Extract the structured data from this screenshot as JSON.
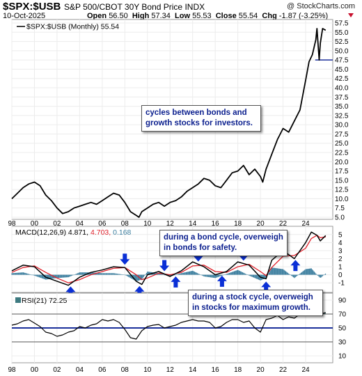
{
  "header": {
    "symbol": "$SPX:$USB",
    "description": "S&P 500/CBOT 30Y Bond Price INDX",
    "copyright": "@ StockCharts.com",
    "date": "10-Oct-2025",
    "open_label": "Open",
    "open": "56.50",
    "high_label": "High",
    "high": "57.34",
    "low_label": "Low",
    "low": "55.53",
    "close_label": "Close",
    "close": "55.54",
    "chg_label": "Chg",
    "chg": "-1.87 (-3.25%)"
  },
  "colors": {
    "price": "#000000",
    "macd": "#000000",
    "signal": "#e0202a",
    "histogram": "#3d7f9f",
    "rsi": "#000000",
    "rsi_fill": "#3d7a80",
    "arrow": "#0a2fd6",
    "annotation_text": "#0b1f8e",
    "rsi_50_line": "#1a2f9a",
    "hline_price": "#1a2f9a"
  },
  "annotations": {
    "cycles": "cycles between bonds and growth stocks for investors.",
    "bond_cycle": "during a bond cycle, overweigh in bonds for safety.",
    "stock_cycle": "during a stock cycle, overweigh in stocks for maximum growth."
  },
  "chart_data": [
    {
      "type": "line",
      "panel": "price",
      "legend": "$SPX:$USB (Monthly) 55.54",
      "x": [
        1998,
        1998.5,
        1999,
        1999.5,
        2000,
        2000.5,
        2001,
        2001.5,
        2002,
        2002.5,
        2003,
        2003.5,
        2004,
        2004.5,
        2005,
        2005.5,
        2006,
        2006.5,
        2007,
        2007.5,
        2008,
        2008.5,
        2009,
        2009.25,
        2009.5,
        2010,
        2010.5,
        2011,
        2011.5,
        2012,
        2012.5,
        2013,
        2013.5,
        2014,
        2014.5,
        2015,
        2015.5,
        2016,
        2016.5,
        2017,
        2017.5,
        2018,
        2018.5,
        2019,
        2019.5,
        2020,
        2020.2,
        2020.5,
        2021,
        2021.5,
        2022,
        2022.5,
        2023,
        2023.5,
        2024,
        2024.3,
        2024.6,
        2024.9,
        2025,
        2025.2,
        2025.3,
        2025.5,
        2025.77
      ],
      "y": [
        10.0,
        11.5,
        13.0,
        14.0,
        14.5,
        13.5,
        11.0,
        9.5,
        7.5,
        6.0,
        6.5,
        7.5,
        8.0,
        8.5,
        9.0,
        8.5,
        9.5,
        10.5,
        11.5,
        11.0,
        9.0,
        6.5,
        5.5,
        5.0,
        6.5,
        7.5,
        8.5,
        9.0,
        8.0,
        9.0,
        9.5,
        10.5,
        12.0,
        13.0,
        14.0,
        15.5,
        15.0,
        13.5,
        13.0,
        15.0,
        17.0,
        17.5,
        19.0,
        16.5,
        18.0,
        16.0,
        14.5,
        18.0,
        22.0,
        26.0,
        29.0,
        28.0,
        31.0,
        34.0,
        42.0,
        47.0,
        49.0,
        53.0,
        56.0,
        47.5,
        52.0,
        56.0,
        55.54
      ],
      "xlabel": "",
      "ylabel": "",
      "ylim": [
        5.0,
        57.5
      ],
      "yticks": [
        5.0,
        7.5,
        10.0,
        12.5,
        15.0,
        17.5,
        20.0,
        22.5,
        25.0,
        27.5,
        30.0,
        32.5,
        35.0,
        37.5,
        40.0,
        42.5,
        45.0,
        47.5,
        50.0,
        52.5,
        55.0,
        57.5
      ],
      "ytick_labels": [
        "5.0",
        "7.5",
        "10.0",
        "12.5",
        "15.0",
        "17.5",
        "20.0",
        "22.5",
        "25.0",
        "27.5",
        "30.0",
        "32.5",
        "35.0",
        "37.5",
        "40.0",
        "42.5",
        "45.0",
        "47.5",
        "50.0",
        "52.5",
        "55.0",
        "57.5"
      ],
      "hline": 47.5,
      "xlim": [
        1998,
        2026.4
      ],
      "xticks": [
        1998,
        2000,
        2002,
        2004,
        2006,
        2008,
        2010,
        2012,
        2014,
        2016,
        2018,
        2020,
        2022,
        2024
      ],
      "xtick_labels": [
        "98",
        "00",
        "02",
        "04",
        "06",
        "08",
        "10",
        "12",
        "14",
        "16",
        "18",
        "20",
        "22",
        "24"
      ]
    },
    {
      "type": "line",
      "panel": "macd",
      "legend_name": "MACD(12,26,9)",
      "legend_values": [
        "4.871",
        "4.703",
        "0.168"
      ],
      "x": [
        1998,
        1999,
        2000,
        2001,
        2002,
        2003,
        2004,
        2005,
        2006,
        2007,
        2008,
        2009,
        2009.5,
        2010,
        2011,
        2012,
        2013,
        2014,
        2015,
        2016,
        2017,
        2018,
        2019,
        2020,
        2020.5,
        2021,
        2022,
        2023,
        2024,
        2024.5,
        2025,
        2025.3,
        2025.77
      ],
      "series": [
        {
          "name": "MACD",
          "values": [
            0.5,
            1.2,
            1.0,
            -0.3,
            -0.8,
            -1.3,
            -0.3,
            0.3,
            0.6,
            1.0,
            0.9,
            -0.8,
            -1.2,
            0.0,
            0.4,
            -0.2,
            0.5,
            1.6,
            1.0,
            0.0,
            0.4,
            1.6,
            1.2,
            -0.3,
            -0.5,
            1.8,
            3.0,
            2.0,
            4.0,
            5.3,
            4.9,
            4.2,
            4.871
          ]
        },
        {
          "name": "Signal",
          "values": [
            0.3,
            0.9,
            1.1,
            0.3,
            -0.4,
            -1.0,
            -0.6,
            0.0,
            0.4,
            0.8,
            0.9,
            0.0,
            -0.6,
            -0.4,
            0.2,
            0.0,
            0.3,
            1.1,
            1.2,
            0.4,
            0.3,
            1.0,
            1.3,
            0.4,
            -0.1,
            0.9,
            2.3,
            2.4,
            3.3,
            4.5,
            4.9,
            4.6,
            4.703
          ]
        }
      ],
      "ylim": [
        -1.5,
        5.5
      ],
      "yticks": [
        -1,
        0,
        1,
        2,
        3,
        4,
        5
      ],
      "ytick_labels": [
        "-1",
        "0",
        "1",
        "2",
        "3",
        "4",
        "5"
      ],
      "arrows_up": [
        2003.2,
        2009.3,
        2012.5,
        2016.6,
        2020.5,
        2023.1
      ],
      "arrows_down": [
        2008.0,
        2011.5,
        2014.5,
        2018.5,
        2021.8
      ]
    },
    {
      "type": "area",
      "panel": "rsi",
      "legend": "RSI(21) 72.25",
      "x": [
        1998,
        1998.5,
        1999,
        1999.5,
        2000,
        2000.5,
        2001,
        2001.5,
        2002,
        2002.5,
        2003,
        2003.5,
        2004,
        2004.5,
        2005,
        2005.5,
        2006,
        2006.5,
        2007,
        2007.5,
        2008,
        2008.5,
        2009,
        2009.5,
        2010,
        2010.5,
        2011,
        2011.5,
        2012,
        2012.5,
        2013,
        2013.5,
        2014,
        2014.5,
        2015,
        2015.5,
        2016,
        2016.5,
        2017,
        2017.5,
        2018,
        2018.5,
        2019,
        2019.5,
        2020,
        2020.5,
        2021,
        2021.5,
        2022,
        2022.5,
        2023,
        2023.5,
        2024,
        2024.5,
        2025,
        2025.3,
        2025.77
      ],
      "values": [
        54,
        56,
        60,
        62,
        57,
        52,
        44,
        42,
        38,
        40,
        44,
        46,
        52,
        50,
        54,
        56,
        62,
        60,
        62,
        58,
        48,
        36,
        34,
        46,
        52,
        54,
        55,
        50,
        52,
        54,
        58,
        60,
        62,
        60,
        60,
        58,
        50,
        52,
        58,
        62,
        62,
        58,
        60,
        50,
        44,
        62,
        64,
        68,
        62,
        66,
        64,
        70,
        78,
        74,
        76,
        70,
        72.25
      ],
      "ylim": [
        0,
        100
      ],
      "yticks": [
        10,
        30,
        50,
        70,
        90
      ],
      "ytick_labels": [
        "10",
        "30",
        "50",
        "70",
        "90"
      ],
      "hlines": [
        30,
        50,
        70
      ]
    }
  ]
}
